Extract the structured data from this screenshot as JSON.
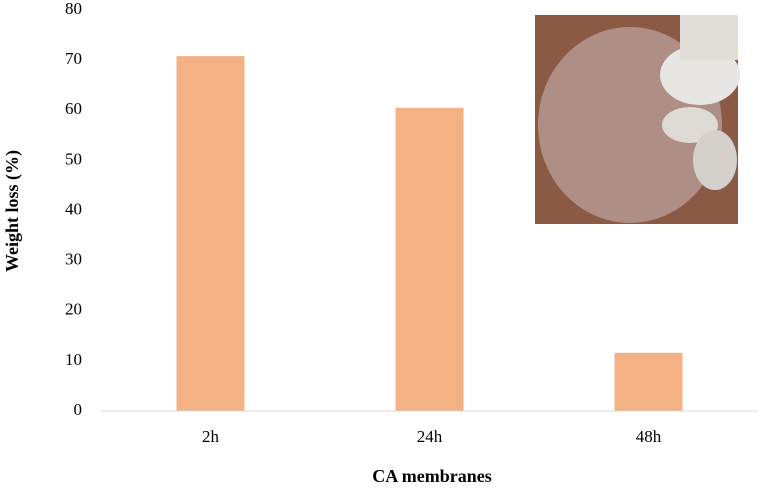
{
  "chart_data": {
    "type": "bar",
    "categories": [
      "2h",
      "24h",
      "48h"
    ],
    "values": [
      70.8,
      60.5,
      11.6
    ],
    "color": "#f4b183",
    "ylim": [
      0,
      80
    ],
    "yticks": [
      0,
      10,
      20,
      30,
      40,
      50,
      60,
      70,
      80
    ],
    "y_label": "Weight loss (%)",
    "x_label": "CA membranes"
  }
}
